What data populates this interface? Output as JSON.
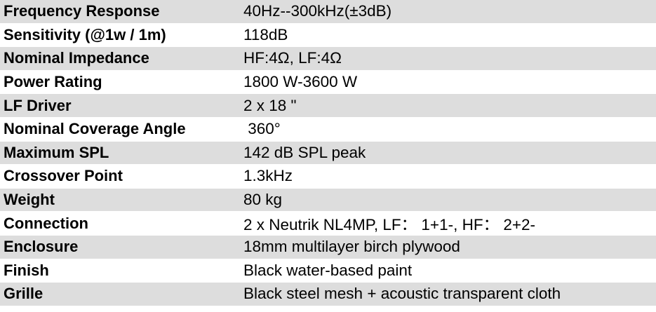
{
  "specs": [
    {
      "label": "Frequency Response",
      "value": "40Hz--300kHz(±3dB)"
    },
    {
      "label": "Sensitivity (@1w / 1m)",
      "value": "118dB"
    },
    {
      "label": "Nominal Impedance",
      "value": "HF:4Ω, LF:4Ω"
    },
    {
      "label": "Power Rating",
      "value": "1800 W-3600 W"
    },
    {
      "label": "LF Driver",
      "value": "2 x 18 \""
    },
    {
      "label": "Nominal Coverage Angle",
      "value": " 360°"
    },
    {
      "label": "Maximum SPL",
      "value": "142 dB SPL peak"
    },
    {
      "label": "Crossover Point",
      "value": "1.3kHz"
    },
    {
      "label": "Weight",
      "value": "80 kg"
    },
    {
      "label": "Connection",
      "value": "2 x Neutrik NL4MP, LF： 1+1-, HF： 2+2-"
    },
    {
      "label": "Enclosure",
      "value": "18mm multilayer birch plywood"
    },
    {
      "label": "Finish",
      "value": "Black water-based paint"
    },
    {
      "label": "Grille",
      "value": "Black steel mesh + acoustic transparent cloth"
    }
  ],
  "colors": {
    "shaded_row": "#dddddd",
    "plain_row": "#ffffff"
  }
}
